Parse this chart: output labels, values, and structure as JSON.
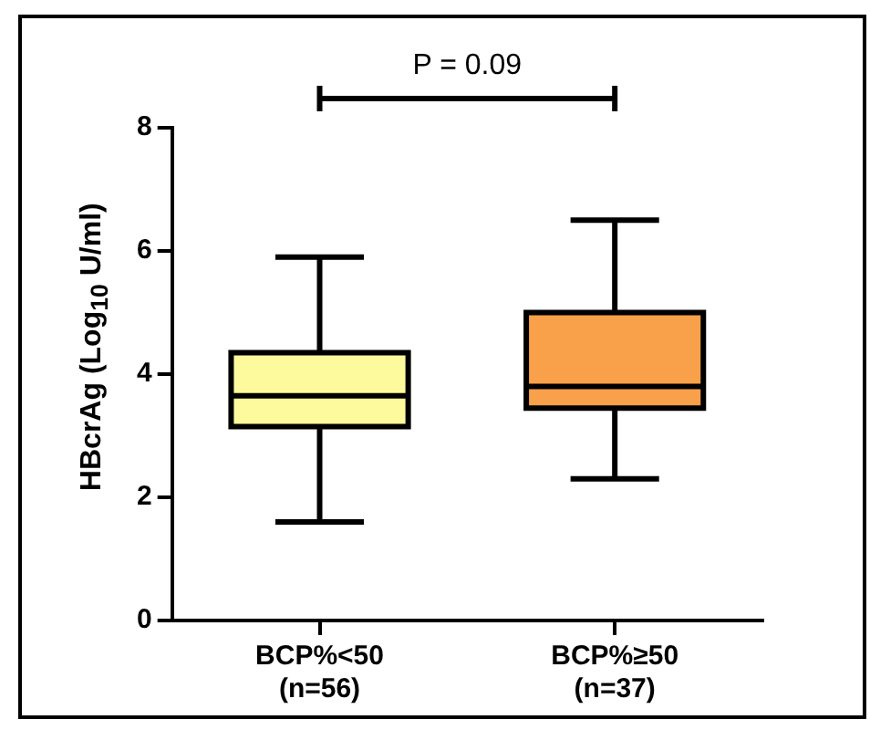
{
  "chart_data": {
    "type": "box",
    "ylabel": "HBcrAg (Log$_{10}$ U/ml)",
    "annotations": [
      "P = 0.09"
    ],
    "categories": [
      "BCP%<50\n(n=56)",
      "BCP%≥50\n(n=37)"
    ],
    "colors": [
      "#fdfa9e",
      "#f9a04a"
    ],
    "boxes": [
      {
        "low": 1.6,
        "q1": 3.15,
        "median": 3.65,
        "q3": 4.35,
        "high": 5.9
      },
      {
        "low": 2.3,
        "q1": 3.45,
        "median": 3.8,
        "q3": 5.0,
        "high": 6.5
      }
    ],
    "ylim": [
      0,
      8
    ],
    "yticks": [
      0,
      2,
      4,
      6,
      8
    ],
    "grid": false
  }
}
